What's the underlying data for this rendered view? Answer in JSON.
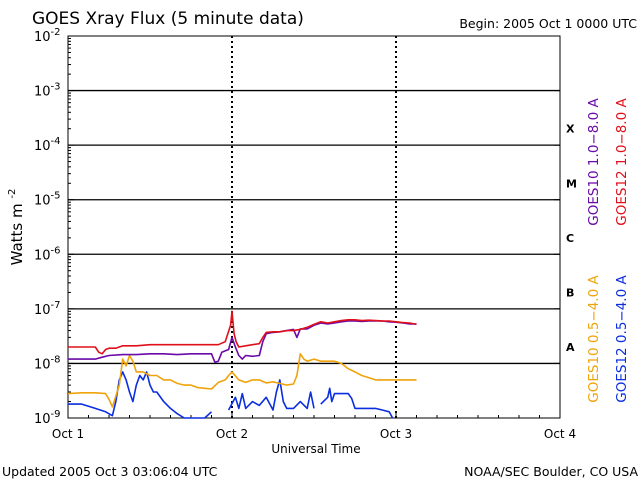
{
  "chart_data": {
    "type": "line",
    "title": "GOES Xray Flux (5 minute data)",
    "begin_label": "Begin:  2005 Oct 1 0000 UTC",
    "xlabel": "Universal Time",
    "ylabel": "Watts m",
    "ylabel_superscript": "-2",
    "footer_left": "Updated 2005 Oct  3 03:06:04 UTC",
    "footer_right": "NOAA/SEC Boulder, CO USA",
    "y_scale": "log",
    "ylim": [
      1e-09,
      0.01
    ],
    "y_tick_labels": [
      {
        "value": 0.01,
        "base": "10",
        "exp": "-2"
      },
      {
        "value": 0.001,
        "base": "10",
        "exp": "-3"
      },
      {
        "value": 0.0001,
        "base": "10",
        "exp": "-4"
      },
      {
        "value": 1e-05,
        "base": "10",
        "exp": "-5"
      },
      {
        "value": 1e-06,
        "base": "10",
        "exp": "-6"
      },
      {
        "value": 1e-07,
        "base": "10",
        "exp": "-7"
      },
      {
        "value": 1e-08,
        "base": "10",
        "exp": "-8"
      },
      {
        "value": 1e-09,
        "base": "10",
        "exp": "-9"
      }
    ],
    "xlim": [
      0,
      72
    ],
    "x_unit": "hours since 2005 Oct 1 0000 UTC",
    "x_tick_labels": [
      {
        "value": 0,
        "label": "Oct 1"
      },
      {
        "value": 24,
        "label": "Oct 2"
      },
      {
        "value": 48,
        "label": "Oct 3"
      },
      {
        "value": 72,
        "label": "Oct 4"
      }
    ],
    "horizontal_grid": [
      0.001,
      0.0001,
      1e-05,
      1e-06,
      1e-07,
      1e-08
    ],
    "flare_classes": [
      {
        "label": "X",
        "value": 0.0002
      },
      {
        "label": "M",
        "value": 2e-05
      },
      {
        "label": "C",
        "value": 2e-06
      },
      {
        "label": "B",
        "value": 2e-07
      },
      {
        "label": "A",
        "value": 2e-08
      }
    ],
    "series": [
      {
        "name": "GOES12 0.5−4.0 A",
        "color": "#0a2ee0",
        "points": [
          [
            0,
            1.8e-09
          ],
          [
            2,
            1.8e-09
          ],
          [
            4,
            1.5e-09
          ],
          [
            5.5,
            1.3e-09
          ],
          [
            6.5,
            1.1e-09
          ],
          [
            7,
            2e-09
          ],
          [
            7.5,
            5e-09
          ],
          [
            8,
            7e-09
          ],
          [
            8.5,
            5e-09
          ],
          [
            9,
            3e-09
          ],
          [
            9.5,
            2e-09
          ],
          [
            10,
            4e-09
          ],
          [
            10.5,
            6e-09
          ],
          [
            11,
            5e-09
          ],
          [
            11.5,
            7e-09
          ],
          [
            12,
            4e-09
          ],
          [
            12.5,
            3e-09
          ],
          [
            13,
            3e-09
          ],
          [
            14,
            2e-09
          ],
          [
            15,
            1.5e-09
          ],
          [
            16,
            1.2e-09
          ],
          [
            17,
            1e-09
          ],
          [
            18,
            1e-09
          ],
          [
            19,
            1e-09
          ],
          [
            20,
            1e-09
          ],
          [
            21,
            1.3e-09
          ]
        ]
      },
      {
        "name": "GOES12 0.5−4.0 A",
        "color": "#0a2ee0",
        "points": [
          [
            23.5,
            1.4e-09
          ],
          [
            24.5,
            2.4e-09
          ],
          [
            25,
            1.5e-09
          ],
          [
            25.5,
            2.8e-09
          ],
          [
            26,
            1.5e-09
          ],
          [
            27,
            2e-09
          ],
          [
            28,
            1.7e-09
          ],
          [
            29,
            2.4e-09
          ],
          [
            30,
            1.4e-09
          ],
          [
            30.5,
            3e-09
          ],
          [
            31,
            5e-09
          ],
          [
            31.5,
            2e-09
          ],
          [
            32,
            1.5e-09
          ],
          [
            33,
            1.5e-09
          ],
          [
            34,
            2e-09
          ],
          [
            35,
            1.5e-09
          ],
          [
            35.5,
            3e-09
          ],
          [
            36,
            1.5e-09
          ]
        ]
      },
      {
        "name": "GOES12 0.5−4.0 A",
        "color": "#0a2ee0",
        "points": [
          [
            37,
            1.8e-09
          ],
          [
            38,
            2.4e-09
          ],
          [
            38.3,
            3.5e-09
          ],
          [
            38.6,
            2e-09
          ],
          [
            39,
            2.8e-09
          ],
          [
            40,
            2.8e-09
          ],
          [
            41,
            2.8e-09
          ],
          [
            41.5,
            2.3e-09
          ],
          [
            42,
            1.5e-09
          ],
          [
            43,
            1.5e-09
          ],
          [
            44,
            1.5e-09
          ],
          [
            45,
            1.5e-09
          ],
          [
            46,
            1.4e-09
          ],
          [
            47,
            1.3e-09
          ],
          [
            47.5,
            1e-09
          ]
        ]
      },
      {
        "name": "GOES10 0.5−4.0 A",
        "color": "#f0a30a",
        "points": [
          [
            0,
            2.8e-09
          ],
          [
            2,
            2.9e-09
          ],
          [
            4,
            2.9e-09
          ],
          [
            5.5,
            2.8e-09
          ],
          [
            6,
            2.2e-09
          ],
          [
            6.5,
            1.6e-09
          ],
          [
            7,
            2.5e-09
          ],
          [
            7.5,
            4e-09
          ],
          [
            8,
            1.2e-08
          ],
          [
            8.5,
            9e-09
          ],
          [
            9,
            1.4e-08
          ],
          [
            9.5,
            1.1e-08
          ],
          [
            10,
            7e-09
          ],
          [
            11,
            7e-09
          ],
          [
            12,
            6e-09
          ],
          [
            13,
            6e-09
          ],
          [
            14,
            5e-09
          ],
          [
            15,
            5e-09
          ],
          [
            16,
            4.3e-09
          ],
          [
            17,
            4e-09
          ],
          [
            18,
            4e-09
          ],
          [
            19,
            3.6e-09
          ],
          [
            20,
            3.5e-09
          ],
          [
            21,
            3.4e-09
          ],
          [
            22,
            4.5e-09
          ],
          [
            23,
            5e-09
          ],
          [
            23.5,
            6e-09
          ],
          [
            24,
            7e-09
          ],
          [
            25,
            5e-09
          ],
          [
            26,
            4.5e-09
          ],
          [
            27,
            5e-09
          ],
          [
            28,
            5e-09
          ],
          [
            29,
            4.4e-09
          ],
          [
            30,
            4.6e-09
          ],
          [
            31,
            4.3e-09
          ],
          [
            32,
            4e-09
          ],
          [
            33,
            4.2e-09
          ],
          [
            33.5,
            6e-09
          ],
          [
            34,
            1.5e-08
          ],
          [
            34.5,
            1.2e-08
          ],
          [
            35,
            1.1e-08
          ],
          [
            36,
            1.2e-08
          ],
          [
            37,
            1.1e-08
          ],
          [
            38,
            1.1e-08
          ],
          [
            39,
            1.1e-08
          ],
          [
            40,
            1e-08
          ],
          [
            41,
            8e-09
          ],
          [
            42,
            7e-09
          ],
          [
            43,
            6e-09
          ],
          [
            44,
            5.5e-09
          ],
          [
            45,
            5e-09
          ],
          [
            46,
            5e-09
          ],
          [
            47,
            5e-09
          ],
          [
            48,
            5e-09
          ],
          [
            49,
            5e-09
          ],
          [
            50,
            5e-09
          ],
          [
            51,
            5e-09
          ]
        ]
      },
      {
        "name": "GOES10 1.0−8.0 A",
        "color": "#6a0aa8",
        "points": [
          [
            0,
            1.2e-08
          ],
          [
            2,
            1.2e-08
          ],
          [
            4,
            1.2e-08
          ],
          [
            5,
            1.3e-08
          ],
          [
            6,
            1.4e-08
          ],
          [
            8,
            1.45e-08
          ],
          [
            10,
            1.45e-08
          ],
          [
            12,
            1.5e-08
          ],
          [
            14,
            1.5e-08
          ],
          [
            16,
            1.45e-08
          ],
          [
            18,
            1.5e-08
          ],
          [
            20,
            1.5e-08
          ],
          [
            21,
            1.5e-08
          ],
          [
            21.5,
            1.05e-08
          ],
          [
            22,
            1.1e-08
          ],
          [
            22.5,
            1.6e-08
          ],
          [
            23,
            1.7e-08
          ],
          [
            23.5,
            1.8e-08
          ],
          [
            24,
            3e-08
          ],
          [
            24.5,
            2e-08
          ],
          [
            25,
            1.4e-08
          ],
          [
            25.5,
            1.2e-08
          ],
          [
            26,
            1.4e-08
          ],
          [
            27,
            1.35e-08
          ],
          [
            28,
            1.4e-08
          ],
          [
            28.5,
            2.5e-08
          ],
          [
            29,
            3.5e-08
          ],
          [
            30,
            3.7e-08
          ],
          [
            31,
            3.8e-08
          ],
          [
            32,
            4e-08
          ],
          [
            33,
            4.2e-08
          ],
          [
            33.5,
            3e-08
          ],
          [
            34,
            4.3e-08
          ],
          [
            35,
            4.3e-08
          ],
          [
            36,
            5e-08
          ],
          [
            37,
            5.5e-08
          ],
          [
            38,
            5.3e-08
          ],
          [
            39,
            5.5e-08
          ],
          [
            40,
            5.8e-08
          ],
          [
            41,
            6e-08
          ],
          [
            42,
            6e-08
          ],
          [
            43,
            5.9e-08
          ],
          [
            44,
            6e-08
          ],
          [
            45,
            6e-08
          ],
          [
            46,
            6e-08
          ],
          [
            47,
            5.8e-08
          ],
          [
            48,
            5.7e-08
          ],
          [
            49,
            5.5e-08
          ],
          [
            50,
            5.3e-08
          ],
          [
            51,
            5.3e-08
          ]
        ]
      },
      {
        "name": "GOES12 1.0−8.0 A",
        "color": "#e0101a",
        "points": [
          [
            0,
            2e-08
          ],
          [
            2,
            2e-08
          ],
          [
            4,
            2e-08
          ],
          [
            4.5,
            1.6e-08
          ],
          [
            5,
            1.5e-08
          ],
          [
            5.5,
            1.8e-08
          ],
          [
            6,
            1.9e-08
          ],
          [
            7,
            1.9e-08
          ],
          [
            8,
            2.1e-08
          ],
          [
            10,
            2.1e-08
          ],
          [
            12,
            2.2e-08
          ],
          [
            14,
            2.2e-08
          ],
          [
            16,
            2.2e-08
          ],
          [
            18,
            2.2e-08
          ],
          [
            20,
            2.2e-08
          ],
          [
            21,
            2.2e-08
          ],
          [
            22,
            2.2e-08
          ],
          [
            23,
            2.5e-08
          ],
          [
            23.8,
            5e-08
          ],
          [
            24,
            9e-08
          ],
          [
            24.3,
            3.5e-08
          ],
          [
            24.6,
            2.5e-08
          ],
          [
            25,
            2e-08
          ],
          [
            26,
            2.1e-08
          ],
          [
            27,
            2.2e-08
          ],
          [
            28,
            2.3e-08
          ],
          [
            28.5,
            3e-08
          ],
          [
            29,
            3.7e-08
          ],
          [
            30,
            3.8e-08
          ],
          [
            31,
            3.8e-08
          ],
          [
            32,
            4e-08
          ],
          [
            33,
            4e-08
          ],
          [
            34,
            4.2e-08
          ],
          [
            35,
            4.6e-08
          ],
          [
            36,
            5.2e-08
          ],
          [
            37,
            5.8e-08
          ],
          [
            38,
            5.5e-08
          ],
          [
            39,
            5.8e-08
          ],
          [
            40,
            6.1e-08
          ],
          [
            41,
            6.3e-08
          ],
          [
            42,
            6.3e-08
          ],
          [
            43,
            6.1e-08
          ],
          [
            44,
            6.2e-08
          ],
          [
            45,
            6.1e-08
          ],
          [
            46,
            6e-08
          ],
          [
            47,
            6e-08
          ],
          [
            48,
            5.8e-08
          ],
          [
            49,
            5.6e-08
          ],
          [
            50,
            5.5e-08
          ],
          [
            51,
            5.2e-08
          ]
        ]
      }
    ],
    "legend_placement": "right",
    "legend": [
      {
        "label": "GOES10 1.0−8.0 A",
        "color": "#6a0aa8",
        "group": "upper"
      },
      {
        "label": "GOES12 1.0−8.0 A",
        "color": "#e0101a",
        "group": "upper"
      },
      {
        "label": "GOES10 0.5−4.0 A",
        "color": "#f0a30a",
        "group": "lower"
      },
      {
        "label": "GOES12 0.5−4.0 A",
        "color": "#0a2ee0",
        "group": "lower"
      }
    ]
  }
}
